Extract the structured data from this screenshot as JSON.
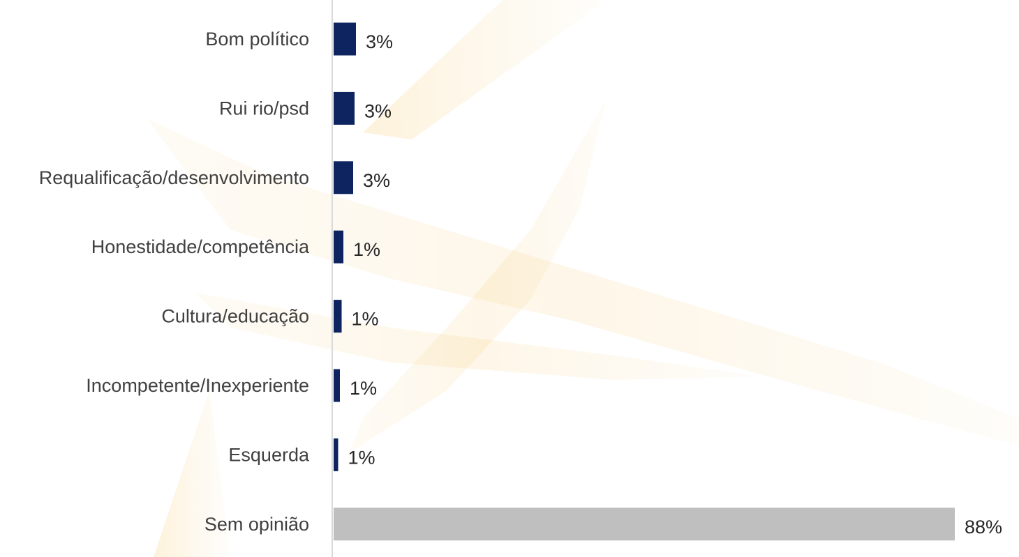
{
  "chart_data": {
    "type": "bar",
    "orientation": "horizontal",
    "categories": [
      "Bom político",
      "Rui rio/psd",
      "Requalificação/desenvolvimento",
      "Honestidade/competência",
      "Cultura/educação",
      "Incompetente/Inexperiente",
      "Esquerda",
      "Sem opinião"
    ],
    "values": [
      3,
      3,
      3,
      1,
      1,
      1,
      1,
      88
    ],
    "value_labels": [
      "3%",
      "3%",
      "3%",
      "1%",
      "1%",
      "1%",
      "1%",
      "88%"
    ],
    "value_unit": "%",
    "xlim": [
      0,
      90
    ],
    "grid": false,
    "legend": "none",
    "colors": {
      "default_bar": "#0d2461",
      "highlight_bar": "#bfbfbf",
      "axis": "#d9d9d9",
      "category_text": "#404040",
      "value_text": "#262626",
      "watermark": "#f6c25a"
    },
    "highlight_categories": [
      "Sem opinião"
    ]
  }
}
